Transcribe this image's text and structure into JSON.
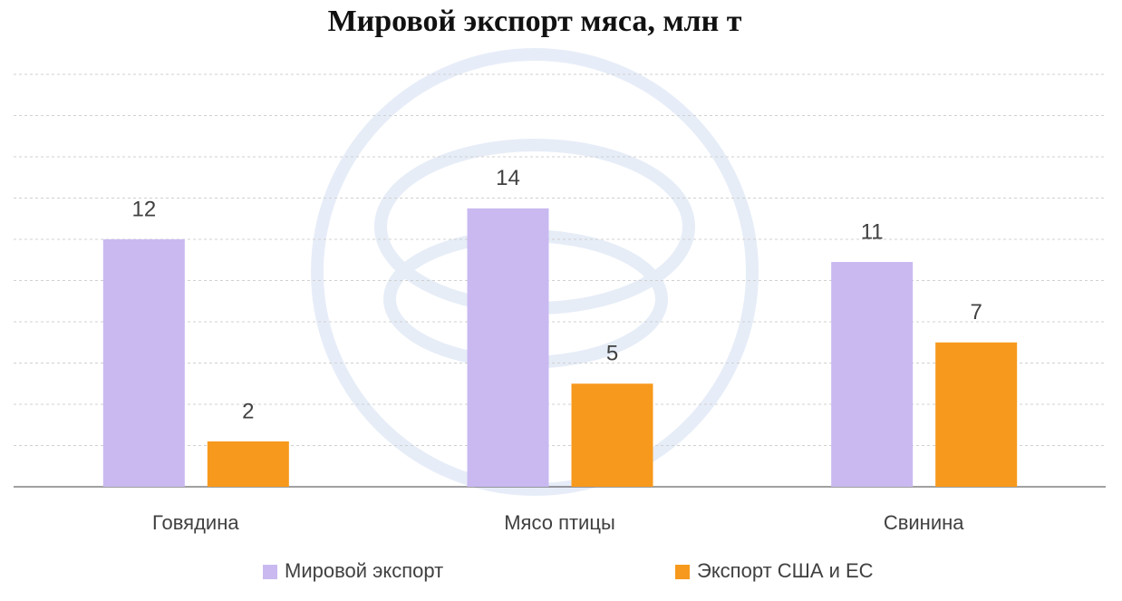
{
  "chart_data": {
    "type": "bar",
    "title": "Мировой экспорт мяса, млн т",
    "categories": [
      "Говядина",
      "Мясо птицы",
      "Свинина"
    ],
    "series": [
      {
        "name": "Мировой экспорт",
        "color": "#c9b9f0",
        "values": [
          12,
          13.5,
          10.9
        ],
        "value_labels": [
          "12",
          "14",
          "11"
        ]
      },
      {
        "name": "Экспорт США и ЕС",
        "color": "#f7991c",
        "values": [
          2.2,
          5,
          7
        ],
        "value_labels": [
          "2",
          "5",
          "7"
        ]
      }
    ],
    "ylim": [
      0,
      20
    ],
    "yticks": [
      0,
      2,
      4,
      6,
      8,
      10,
      12,
      14,
      16,
      18,
      20
    ],
    "ytick_labels": false,
    "grid": true
  }
}
